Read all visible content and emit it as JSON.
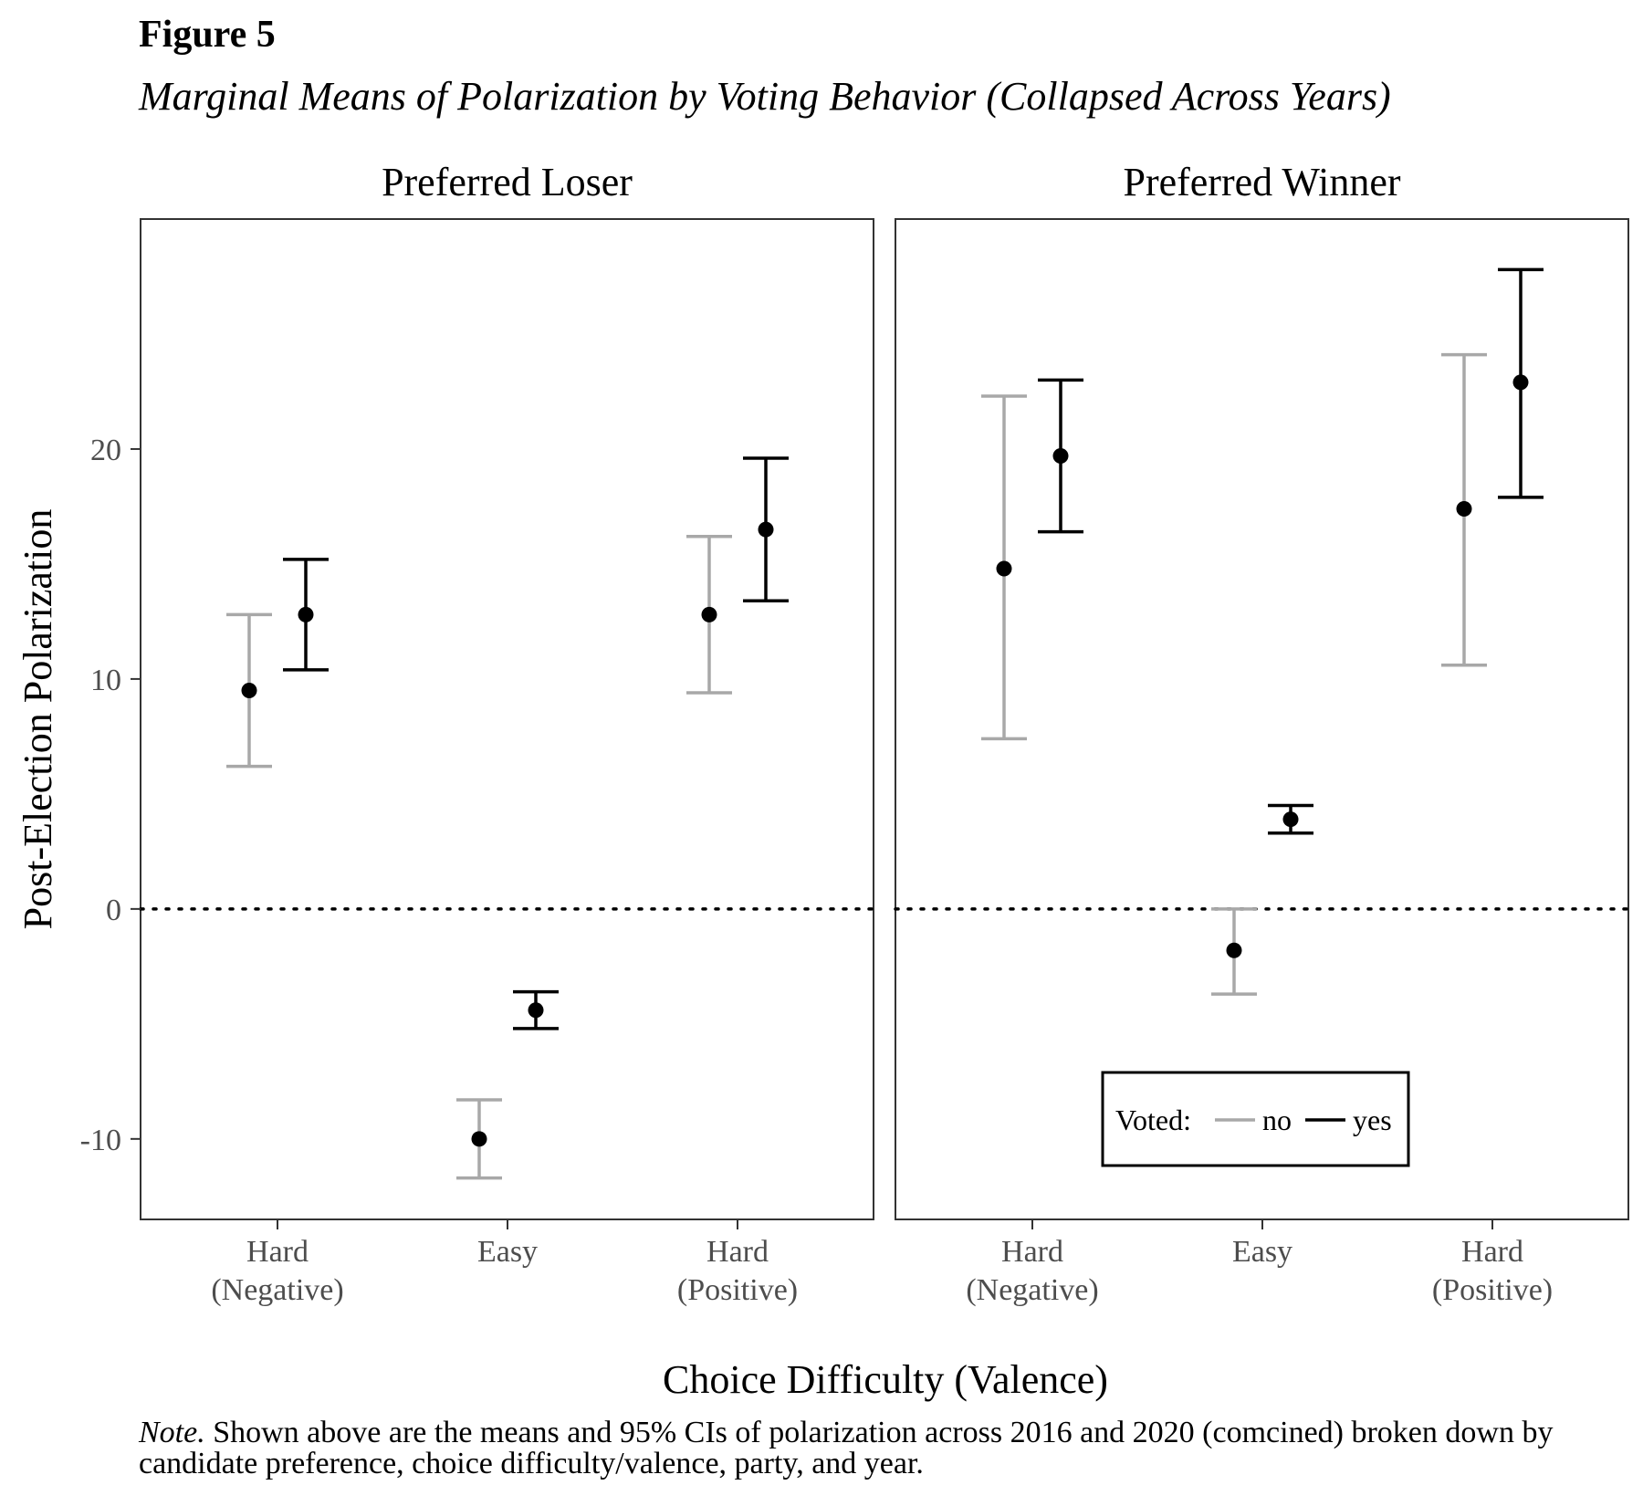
{
  "figure": {
    "label": "Figure 5",
    "title": "Marginal Means of Polarization by Voting Behavior (Collapsed Across Years)",
    "note_lead": "Note.",
    "note_text": " Shown above are the means and 95% CIs of polarization across 2016 and 2020 (comcined) broken down by candidate preference, choice difficulty/valence, party, and year."
  },
  "chart_data": {
    "type": "scatter",
    "subtype": "point-with-error-bars, faceted",
    "xlabel": "Choice Difficulty (Valence)",
    "ylabel": "Post-Election Polarization",
    "categories": [
      "Hard\n(Negative)",
      "Easy",
      "Hard\n(Positive)"
    ],
    "ylim": [
      -13.5,
      30
    ],
    "yticks": [
      -10,
      0,
      10,
      20
    ],
    "reference_line": {
      "y": 0,
      "style": "dotted"
    },
    "legend": {
      "title": "Voted:",
      "placement": "bottom-right of right panel",
      "entries": [
        {
          "label": "no",
          "color": "#a8a8a8"
        },
        {
          "label": "yes",
          "color": "#000000"
        }
      ]
    },
    "colors": {
      "no": "#a8a8a8",
      "yes": "#000000",
      "point": "#000000"
    },
    "panels": [
      {
        "title": "Preferred Loser",
        "series": [
          {
            "name": "no",
            "mean": [
              9.5,
              -10.0,
              12.8
            ],
            "lower": [
              6.2,
              -11.7,
              9.4
            ],
            "upper": [
              12.8,
              -8.3,
              16.2
            ]
          },
          {
            "name": "yes",
            "mean": [
              12.8,
              -4.4,
              16.5
            ],
            "lower": [
              10.4,
              -5.2,
              13.4
            ],
            "upper": [
              15.2,
              -3.6,
              19.6
            ]
          }
        ]
      },
      {
        "title": "Preferred Winner",
        "series": [
          {
            "name": "no",
            "mean": [
              14.8,
              -1.8,
              17.4
            ],
            "lower": [
              7.4,
              -3.7,
              10.6
            ],
            "upper": [
              22.3,
              0.0,
              24.1
            ]
          },
          {
            "name": "yes",
            "mean": [
              19.7,
              3.9,
              22.9
            ],
            "lower": [
              16.4,
              3.3,
              17.9
            ],
            "upper": [
              23.0,
              4.5,
              27.8
            ]
          }
        ]
      }
    ]
  }
}
